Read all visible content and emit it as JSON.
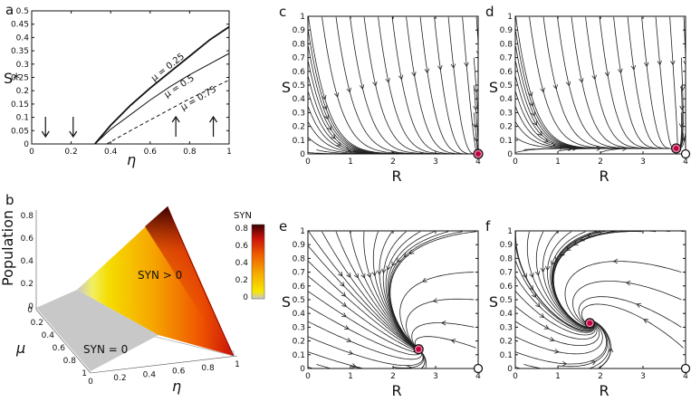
{
  "panel_labels": {
    "a": "a",
    "b": "b",
    "c": "c",
    "d": "d",
    "e": "e",
    "f": "f"
  },
  "chart_data": [
    {
      "panel": "a",
      "type": "line",
      "ylabel": "S*",
      "xlabel": "η",
      "xlim": [
        0,
        1
      ],
      "ylim": [
        0,
        0.5
      ],
      "xticks": [
        "0",
        "0.2",
        "0.4",
        "0.6",
        "0.8",
        "1"
      ],
      "yticks": [
        "0",
        "0.05",
        "0.1",
        "0.15",
        "0.2",
        "0.25",
        "0.3",
        "0.35",
        "0.4",
        "0.45",
        "0.5"
      ],
      "series": [
        {
          "name": "μ = 0.25",
          "style": "solid-thick",
          "x": [
            0.32,
            0.4,
            0.5,
            0.6,
            0.7,
            0.8,
            0.9,
            1.0
          ],
          "y": [
            0.0,
            0.07,
            0.145,
            0.21,
            0.27,
            0.33,
            0.39,
            0.44
          ]
        },
        {
          "name": "μ = 0.5",
          "style": "solid-thin",
          "x": [
            0.32,
            0.4,
            0.5,
            0.6,
            0.7,
            0.8,
            0.9,
            1.0
          ],
          "y": [
            0.0,
            0.055,
            0.11,
            0.165,
            0.215,
            0.26,
            0.3,
            0.34
          ]
        },
        {
          "name": "μ = 0.75",
          "style": "dashed",
          "x": [
            0.38,
            0.5,
            0.6,
            0.7,
            0.8,
            0.9,
            1.0
          ],
          "y": [
            0.0,
            0.05,
            0.09,
            0.13,
            0.17,
            0.205,
            0.24
          ]
        }
      ],
      "arrows": [
        {
          "x": 0.07,
          "direction": "down"
        },
        {
          "x": 0.21,
          "direction": "down"
        },
        {
          "x": 0.73,
          "direction": "up"
        },
        {
          "x": 0.92,
          "direction": "up"
        }
      ]
    },
    {
      "panel": "b",
      "type": "surface",
      "zlabel": "Population",
      "xlabel": "η",
      "ylabel": "μ",
      "zticks": [
        "0",
        "0.2",
        "0.4",
        "0.6",
        "0.8"
      ],
      "eta_ticks": [
        "0",
        "0.2",
        "0.4",
        "0.6",
        "0.8",
        "1"
      ],
      "mu_ticks": [
        "0",
        "0.2",
        "0.4",
        "0.6",
        "0.8",
        "1"
      ],
      "regions": [
        "SYN > 0",
        "SYN = 0"
      ],
      "colorbar": {
        "title": "SYN",
        "ticks": [
          "0",
          "0.2",
          "0.4",
          "0.6",
          "0.8"
        ],
        "colors": [
          "#c8c8c8",
          "#f7e600",
          "#f6a800",
          "#ee5a00",
          "#c8100a",
          "#3a0000"
        ]
      }
    },
    {
      "panel": "c",
      "type": "phase-portrait",
      "xlabel": "R",
      "ylabel": "S",
      "xlim": [
        0,
        4
      ],
      "ylim": [
        0,
        1
      ],
      "xticks": [
        "0",
        "1",
        "2",
        "3",
        "4"
      ],
      "yticks": [
        "0",
        "0.1",
        "0.2",
        "0.3",
        "0.4",
        "0.5",
        "0.6",
        "0.7",
        "0.8",
        "0.9",
        "1"
      ],
      "stable_point": [
        4.0,
        0.0
      ],
      "unstable_point": null,
      "spiral": 0
    },
    {
      "panel": "d",
      "type": "phase-portrait",
      "xlabel": "R",
      "ylabel": "S",
      "xlim": [
        0,
        4
      ],
      "ylim": [
        0,
        1
      ],
      "xticks": [
        "0",
        "1",
        "2",
        "3",
        "4"
      ],
      "yticks": [
        "0",
        "0.1",
        "0.2",
        "0.3",
        "0.4",
        "0.5",
        "0.6",
        "0.7",
        "0.8",
        "0.9",
        "1"
      ],
      "stable_point": [
        3.78,
        0.04
      ],
      "unstable_point": [
        4.0,
        0.0
      ],
      "spiral": 0
    },
    {
      "panel": "e",
      "type": "phase-portrait",
      "xlabel": "R",
      "ylabel": "S",
      "xlim": [
        0,
        4
      ],
      "ylim": [
        0,
        1
      ],
      "xticks": [
        "0",
        "1",
        "2",
        "3",
        "4"
      ],
      "yticks": [
        "0",
        "0.1",
        "0.2",
        "0.3",
        "0.4",
        "0.5",
        "0.6",
        "0.7",
        "0.8",
        "0.9",
        "1"
      ],
      "stable_point": [
        2.6,
        0.14
      ],
      "unstable_point": [
        4.0,
        0.0
      ],
      "spiral": 0.6
    },
    {
      "panel": "f",
      "type": "phase-portrait",
      "xlabel": "R",
      "ylabel": "S",
      "xlim": [
        0,
        4
      ],
      "ylim": [
        0,
        1
      ],
      "xticks": [
        "0",
        "1",
        "2",
        "3",
        "4"
      ],
      "yticks": [
        "0",
        "0.1",
        "0.2",
        "0.3",
        "0.4",
        "0.5",
        "0.6",
        "0.7",
        "0.8",
        "0.9",
        "1"
      ],
      "stable_point": [
        1.75,
        0.33
      ],
      "unstable_point": [
        4.0,
        0.0
      ],
      "spiral": 1.0
    }
  ],
  "colors": {
    "stable_fill": "#c0003a",
    "stable_ring": "#e87aa0",
    "unstable_fill": "#ffffff",
    "stroke": "#222222"
  }
}
